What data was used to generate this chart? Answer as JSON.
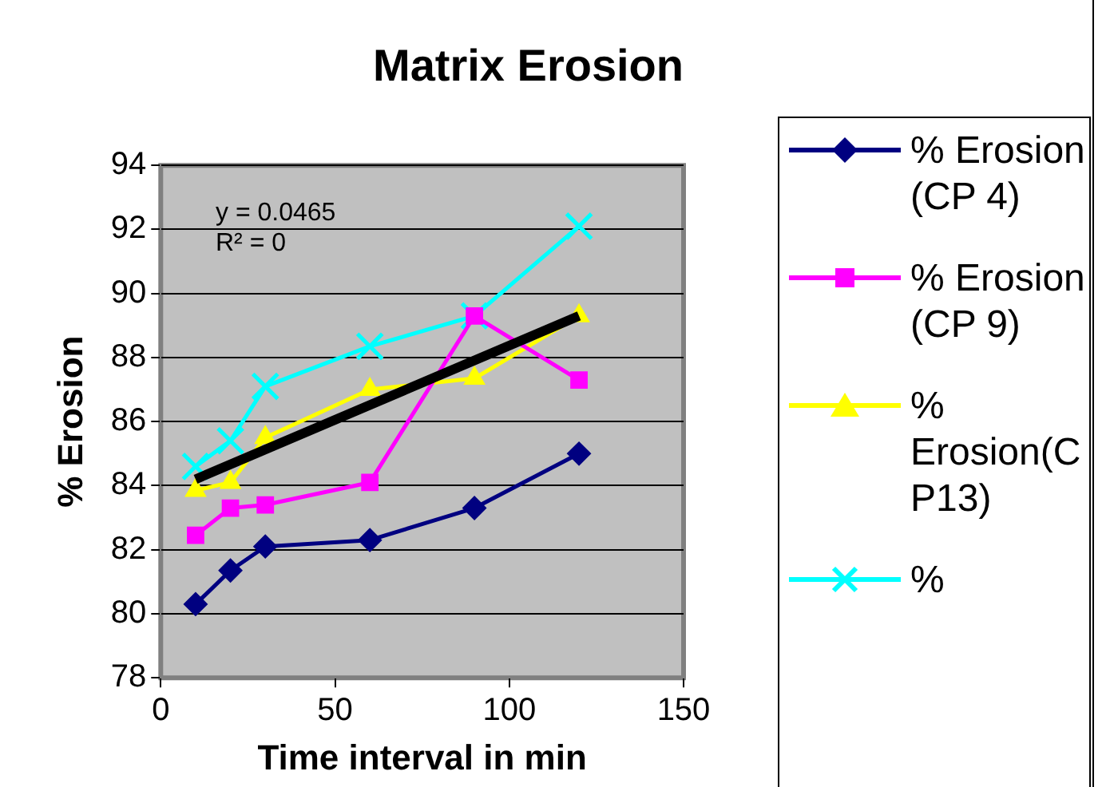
{
  "chart_data": {
    "type": "line",
    "title": "Matrix Erosion",
    "xlabel": "Time interval in min",
    "ylabel": "% Erosion",
    "xlim": [
      0,
      150
    ],
    "xticks": [
      0,
      50,
      100,
      150
    ],
    "ylim": [
      78,
      94
    ],
    "yticks": [
      78,
      80,
      82,
      84,
      86,
      88,
      90,
      92,
      94
    ],
    "grid": "y",
    "legend": "right",
    "x": [
      10,
      20,
      30,
      60,
      90,
      120
    ],
    "series": [
      {
        "name": "% Erosion (CP 4)",
        "color": "#000080",
        "marker": "diamond",
        "values": [
          80.3,
          81.35,
          82.1,
          82.3,
          83.3,
          85.0
        ]
      },
      {
        "name": "% Erosion (CP 9)",
        "color": "#ff00ff",
        "marker": "square",
        "values": [
          82.45,
          83.3,
          83.4,
          84.1,
          89.3,
          87.3
        ]
      },
      {
        "name": "% Erosion(CP13)",
        "color": "#ffff00",
        "marker": "triangle",
        "values": [
          83.85,
          84.1,
          85.5,
          87.0,
          87.35,
          89.3
        ]
      },
      {
        "name": "%",
        "color": "#00ffff",
        "marker": "cross",
        "values": [
          84.6,
          85.4,
          87.1,
          88.35,
          89.3,
          92.1
        ]
      },
      {
        "type": "line",
        "color": "#000000",
        "marker": "none",
        "x": [
          10,
          120
        ],
        "values": [
          84.2,
          89.3
        ]
      }
    ],
    "annotations": [
      "y = 0.0465",
      "R² = 0"
    ]
  }
}
